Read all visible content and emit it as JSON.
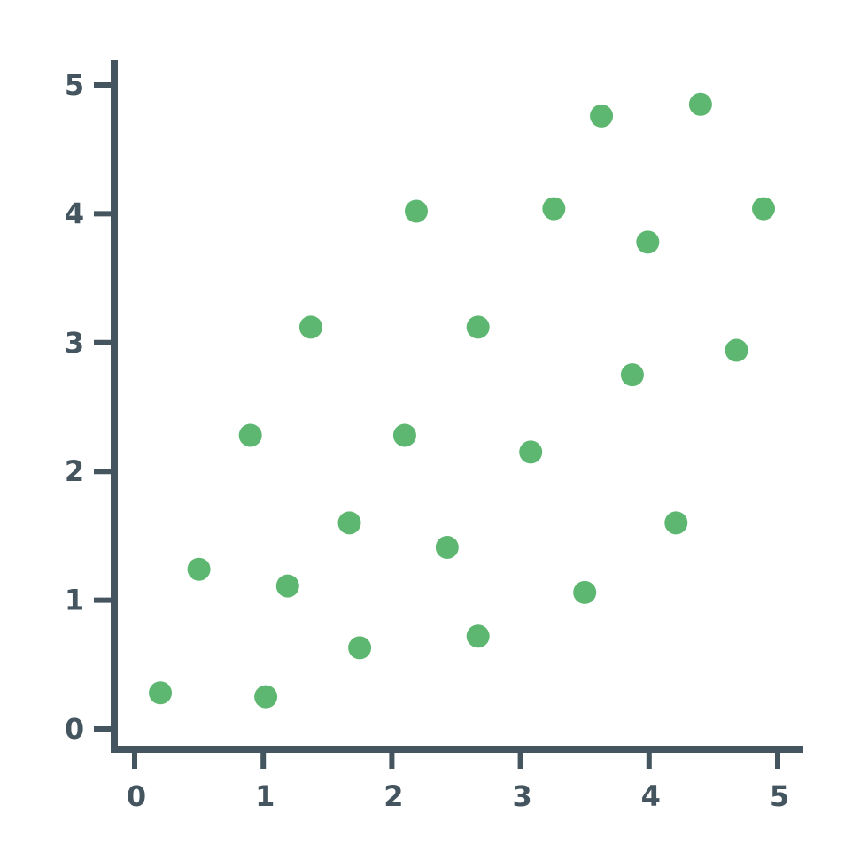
{
  "chart_data": {
    "type": "scatter",
    "title": "",
    "xlabel": "",
    "ylabel": "",
    "xlim": [
      0,
      5
    ],
    "ylim": [
      0,
      5
    ],
    "x_ticks": [
      0,
      1,
      2,
      3,
      4,
      5
    ],
    "y_ticks": [
      0,
      1,
      2,
      3,
      4,
      5
    ],
    "x_tick_labels": [
      "0",
      "1",
      "2",
      "3",
      "4",
      "5"
    ],
    "y_tick_labels": [
      "0",
      "1",
      "2",
      "3",
      "4",
      "5"
    ],
    "grid": false,
    "legend": "none",
    "series": [
      {
        "points": [
          {
            "x": 0.2,
            "y": 0.28
          },
          {
            "x": 1.02,
            "y": 0.25
          },
          {
            "x": 1.75,
            "y": 0.63
          },
          {
            "x": 2.67,
            "y": 0.72
          },
          {
            "x": 3.5,
            "y": 1.06
          },
          {
            "x": 0.5,
            "y": 1.24
          },
          {
            "x": 1.19,
            "y": 1.11
          },
          {
            "x": 1.67,
            "y": 1.6
          },
          {
            "x": 2.43,
            "y": 1.41
          },
          {
            "x": 4.21,
            "y": 1.6
          },
          {
            "x": 0.9,
            "y": 2.28
          },
          {
            "x": 2.1,
            "y": 2.28
          },
          {
            "x": 3.08,
            "y": 2.15
          },
          {
            "x": 3.87,
            "y": 2.75
          },
          {
            "x": 4.68,
            "y": 2.94
          },
          {
            "x": 1.37,
            "y": 3.12
          },
          {
            "x": 2.67,
            "y": 3.12
          },
          {
            "x": 3.99,
            "y": 3.78
          },
          {
            "x": 2.19,
            "y": 4.02
          },
          {
            "x": 3.26,
            "y": 4.04
          },
          {
            "x": 4.89,
            "y": 4.04
          },
          {
            "x": 3.63,
            "y": 4.76
          },
          {
            "x": 4.4,
            "y": 4.85
          }
        ]
      }
    ]
  },
  "colors": {
    "axis": "#44555f",
    "point": "#5db771",
    "tick_label": "#44555f",
    "background": "#ffffff"
  }
}
